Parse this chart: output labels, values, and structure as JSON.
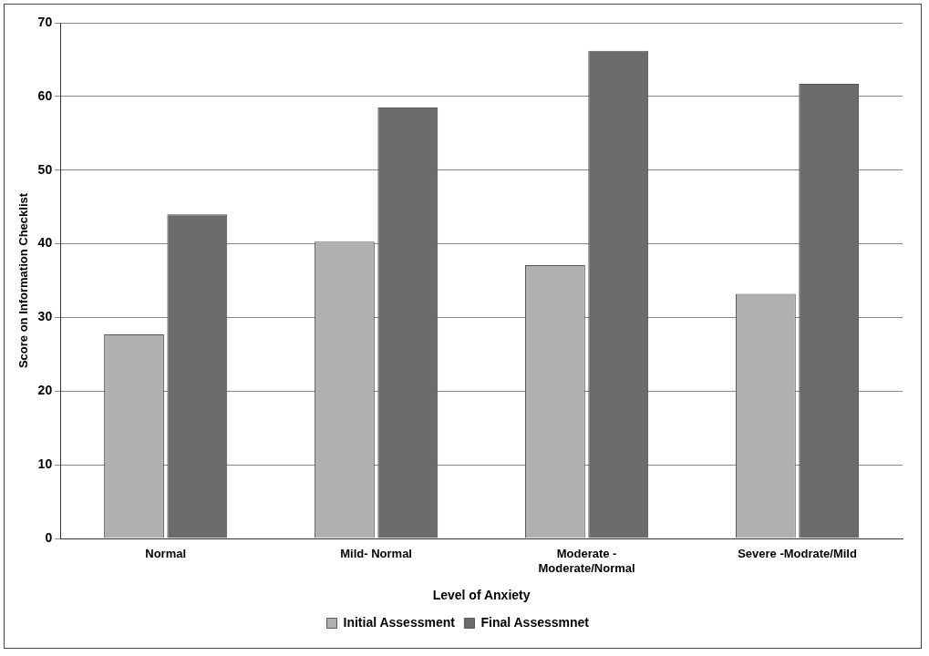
{
  "chart_data": {
    "type": "bar",
    "xlabel": "Level of Anxiety",
    "ylabel": "Score on Information Checklist",
    "categories": [
      "Normal",
      "Mild- Normal",
      "Moderate - Moderate/Normal",
      "Severe -Modrate/Mild"
    ],
    "series": [
      {
        "name": "Initial Assessment",
        "color": "#b0b0b0",
        "values": [
          27.7,
          40.3,
          37.1,
          33.2
        ]
      },
      {
        "name": "Final Assessmnet",
        "color": "#6b6b6b",
        "values": [
          44.0,
          58.5,
          66.2,
          61.7
        ]
      }
    ],
    "ylim": [
      0,
      70
    ],
    "yticks": [
      0,
      10,
      20,
      30,
      40,
      50,
      60,
      70
    ],
    "grid": "y",
    "legend": "bottom"
  }
}
